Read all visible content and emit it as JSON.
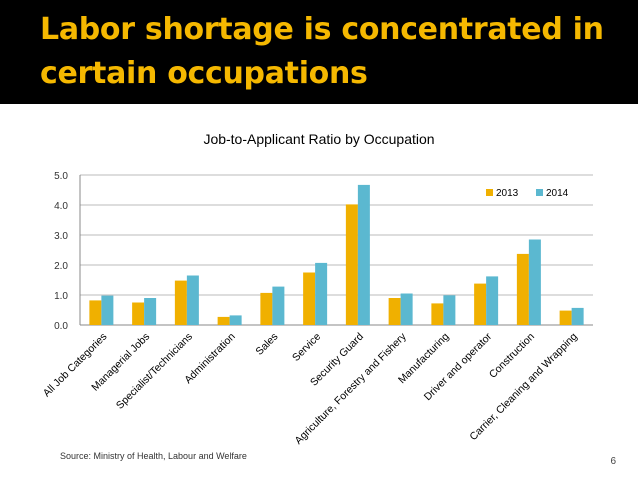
{
  "slide": {
    "title_line1": "Labor shortage is concentrated in",
    "title_line2": "certain occupations",
    "source": "Source: Ministry of Health, Labour and Welfare",
    "page_number": "6"
  },
  "colors": {
    "header_bg": "#000000",
    "title": "#f5b800",
    "series_2013": "#f0b000",
    "series_2014": "#5bb8d0",
    "grid": "#bbbbbb"
  },
  "chart_data": {
    "type": "bar",
    "title": "Job-to-Applicant Ratio by Occupation",
    "categories": [
      "All Job Categories",
      "Managerial Jobs",
      "Specialist/Technicians",
      "Administration",
      "Sales",
      "Service",
      "Security Guard",
      "Agriculture, Forestry and Fishery",
      "Manufacturing",
      "Driver and operator",
      "Construction",
      "Carrier, Cleaning and Wrapping"
    ],
    "series": [
      {
        "name": "2013",
        "color": "#f0b000",
        "values": [
          0.82,
          0.75,
          1.48,
          0.27,
          1.07,
          1.75,
          4.02,
          0.9,
          0.72,
          1.38,
          2.37,
          0.48
        ]
      },
      {
        "name": "2014",
        "color": "#5bb8d0",
        "values": [
          0.98,
          0.9,
          1.65,
          0.32,
          1.28,
          2.07,
          4.67,
          1.05,
          0.99,
          1.62,
          2.85,
          0.57
        ]
      }
    ],
    "ylim": [
      0,
      5
    ],
    "yticks": [
      "0.0",
      "1.0",
      "2.0",
      "3.0",
      "4.0",
      "5.0"
    ],
    "grid": true,
    "legend_position": "top-right"
  }
}
